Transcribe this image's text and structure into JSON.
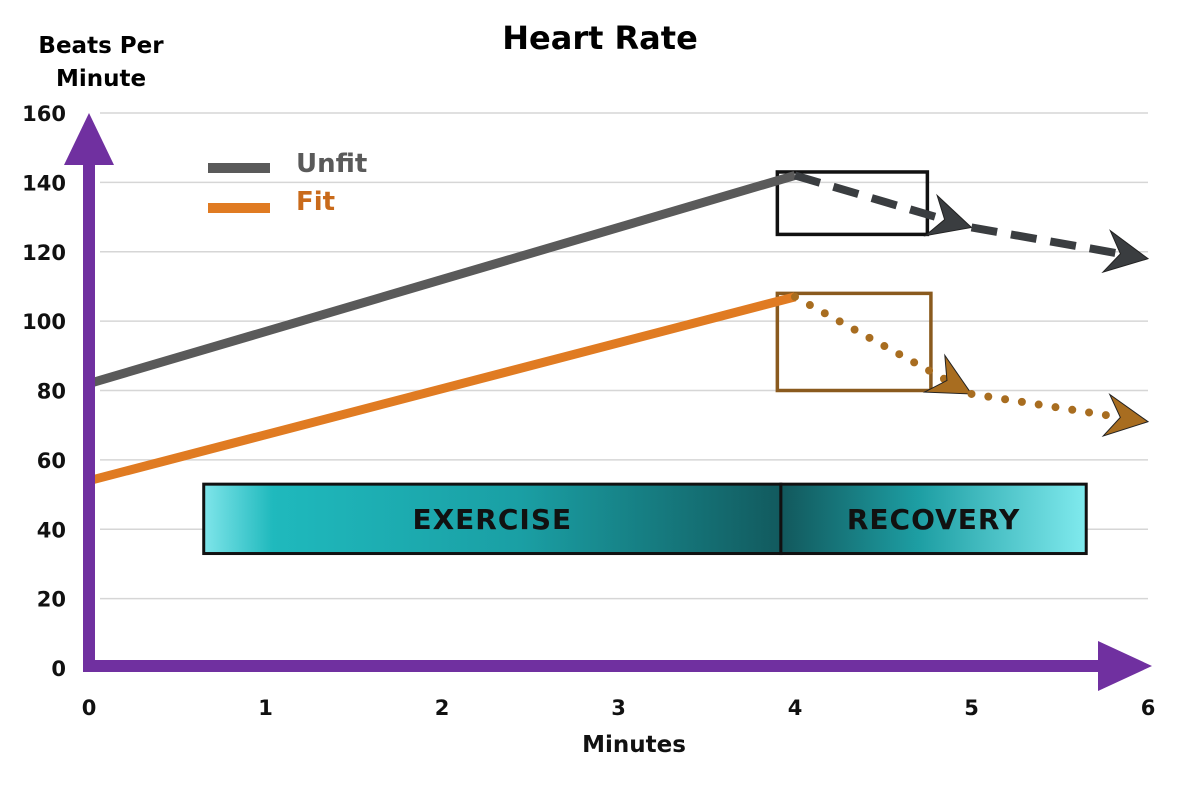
{
  "chart_data": {
    "type": "line",
    "title": "Heart Rate",
    "ylabel_line1": "Beats Per",
    "ylabel_line2": "Minute",
    "xlabel": "Minutes",
    "xlim": [
      0,
      6
    ],
    "ylim": [
      0,
      160
    ],
    "x_ticks": [
      0,
      1,
      2,
      3,
      4,
      5,
      6
    ],
    "y_ticks": [
      0,
      20,
      40,
      60,
      80,
      100,
      120,
      140,
      160
    ],
    "grid": true,
    "legend_position": "top-left",
    "series": [
      {
        "name": "Unfit",
        "color": "#5a5a5a",
        "exercise": [
          {
            "x": 0,
            "y": 82
          },
          {
            "x": 4,
            "y": 142
          }
        ],
        "recovery": [
          {
            "x": 4,
            "y": 142
          },
          {
            "x": 5,
            "y": 127
          },
          {
            "x": 6,
            "y": 118
          }
        ],
        "recovery_style": "dashed"
      },
      {
        "name": "Fit",
        "color": "#e07b22",
        "exercise": [
          {
            "x": 0,
            "y": 54
          },
          {
            "x": 4,
            "y": 107
          }
        ],
        "recovery": [
          {
            "x": 4,
            "y": 107
          },
          {
            "x": 5,
            "y": 79
          },
          {
            "x": 6,
            "y": 71
          }
        ],
        "recovery_style": "dotted"
      }
    ],
    "phases": [
      {
        "label": "EXERCISE",
        "x_start": 0.65,
        "x_end": 3.92
      },
      {
        "label": "RECOVERY",
        "x_start": 3.92,
        "x_end": 5.65
      }
    ],
    "phase_y_range": [
      33,
      53
    ],
    "highlight_boxes": [
      {
        "series": "Unfit",
        "x_start": 3.9,
        "x_end": 4.75,
        "y_start": 125,
        "y_end": 143,
        "color": "#111111"
      },
      {
        "series": "Fit",
        "x_start": 3.9,
        "x_end": 4.77,
        "y_start": 80,
        "y_end": 108,
        "color": "#8a5a1e"
      }
    ],
    "axis_color": "#7030a0",
    "gridline_color": "#d6d6d6"
  }
}
